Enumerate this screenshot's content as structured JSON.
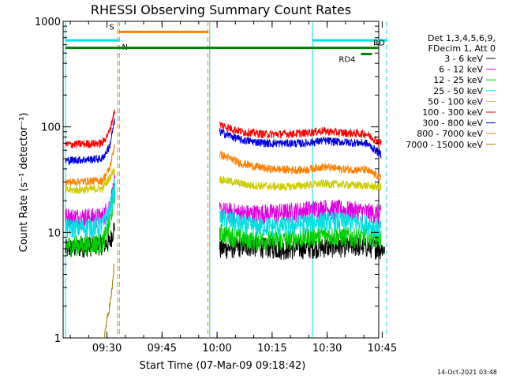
{
  "chart_data": {
    "type": "line",
    "title": "RHESSI Observing Summary Count Rates",
    "xlabel": "Start Time (07-Mar-09 09:18:42)",
    "ylabel": "Count Rate (s⁻¹ detector⁻¹)",
    "ylog": true,
    "ylim": [
      1,
      1000
    ],
    "xlim_minutes": [
      0,
      86
    ],
    "x_ticks": [
      {
        "label": "09:30",
        "m": 11.3
      },
      {
        "label": "09:45",
        "m": 26.3
      },
      {
        "label": "10:00",
        "m": 41.3
      },
      {
        "label": "10:15",
        "m": 56.3
      },
      {
        "label": "10:30",
        "m": 71.3
      },
      {
        "label": "10:45",
        "m": 86.3
      }
    ],
    "y_ticks": [
      "1",
      "10",
      "100",
      "1000"
    ],
    "legend_header": [
      "Det 1,3,4,5,6,9,",
      "FDecim 1, Att 0"
    ],
    "series": [
      {
        "name": "3 - 6 keV",
        "color": "#000000",
        "pre": [
          [
            0,
            7
          ],
          [
            12,
            8
          ],
          [
            13.5,
            12
          ]
        ],
        "post": [
          [
            42,
            7
          ],
          [
            50,
            7.5
          ],
          [
            60,
            7
          ],
          [
            70,
            7.3
          ],
          [
            80,
            7.5
          ],
          [
            87,
            7
          ]
        ]
      },
      {
        "name": "6 - 12 keV",
        "color": "#e000e0",
        "pre": [
          [
            0,
            14
          ],
          [
            10,
            14
          ],
          [
            12,
            18
          ],
          [
            13.5,
            30
          ]
        ],
        "post": [
          [
            42,
            16
          ],
          [
            50,
            15
          ],
          [
            60,
            15.5
          ],
          [
            70,
            17
          ],
          [
            80,
            16
          ],
          [
            86,
            15
          ]
        ]
      },
      {
        "name": "12 - 25 keV",
        "color": "#00cc00",
        "pre": [
          [
            0,
            7.5
          ],
          [
            10,
            8
          ],
          [
            12,
            12
          ],
          [
            13.5,
            25
          ]
        ],
        "post": [
          [
            42,
            10
          ],
          [
            50,
            8.5
          ],
          [
            60,
            8.5
          ],
          [
            70,
            9.5
          ],
          [
            80,
            9
          ],
          [
            86,
            9
          ]
        ]
      },
      {
        "name": "25 - 50 keV",
        "color": "#00e0e0",
        "pre": [
          [
            0,
            11
          ],
          [
            10,
            11.5
          ],
          [
            12,
            16
          ],
          [
            13.5,
            28
          ]
        ],
        "post": [
          [
            42,
            14
          ],
          [
            50,
            11.5
          ],
          [
            60,
            11.5
          ],
          [
            70,
            13
          ],
          [
            80,
            12.5
          ],
          [
            86,
            11
          ]
        ]
      },
      {
        "name": "50 - 100 keV",
        "color": "#cccc00",
        "pre": [
          [
            0,
            25
          ],
          [
            10,
            26
          ],
          [
            12,
            33
          ],
          [
            13.5,
            40
          ]
        ],
        "post": [
          [
            42,
            32
          ],
          [
            50,
            28
          ],
          [
            60,
            27
          ],
          [
            70,
            29
          ],
          [
            80,
            28
          ],
          [
            86,
            27
          ]
        ]
      },
      {
        "name": "100 - 300 keV",
        "color": "#ff0000",
        "pre": [
          [
            0,
            68
          ],
          [
            10,
            70
          ],
          [
            12,
            90
          ],
          [
            13.5,
            150
          ]
        ],
        "post": [
          [
            42,
            105
          ],
          [
            48,
            90
          ],
          [
            55,
            85
          ],
          [
            65,
            87
          ],
          [
            70,
            92
          ],
          [
            75,
            88
          ],
          [
            82,
            86
          ],
          [
            86,
            70
          ]
        ]
      },
      {
        "name": "300 - 800 keV",
        "color": "#0000e0",
        "pre": [
          [
            0,
            48
          ],
          [
            10,
            50
          ],
          [
            12,
            65
          ],
          [
            13.5,
            120
          ]
        ],
        "post": [
          [
            42,
            90
          ],
          [
            48,
            75
          ],
          [
            55,
            70
          ],
          [
            65,
            70
          ],
          [
            70,
            74
          ],
          [
            75,
            72
          ],
          [
            82,
            70
          ],
          [
            86,
            55
          ]
        ]
      },
      {
        "name": "800 - 7000 keV",
        "color": "#ff8000",
        "pre": [
          [
            0,
            30
          ],
          [
            10,
            31
          ],
          [
            12,
            40
          ],
          [
            13.5,
            70
          ]
        ],
        "post": [
          [
            42,
            55
          ],
          [
            48,
            45
          ],
          [
            55,
            40
          ],
          [
            65,
            39
          ],
          [
            70,
            42
          ],
          [
            75,
            40
          ],
          [
            82,
            39
          ],
          [
            86,
            33
          ]
        ]
      },
      {
        "name": "7000 - 15000 keV",
        "color": "#a07800",
        "pre": [
          [
            10.5,
            1
          ],
          [
            12.5,
            2.5
          ],
          [
            13.3,
            5
          ]
        ],
        "post": []
      }
    ],
    "flag_bars": [
      {
        "label": "S",
        "color": "#ff8000",
        "x0": 14.5,
        "x1": 39.0,
        "level": 795
      },
      {
        "label": "N",
        "color": "#00e0e0",
        "x0": 0,
        "x1": 14.5,
        "level": 660
      },
      {
        "label": "",
        "color": "#00e0e0",
        "x0": 67.3,
        "x1": 87.5,
        "level": 660
      },
      {
        "label": "",
        "color": "#008000",
        "x0": 0,
        "x1": 83.0,
        "level": 560
      },
      {
        "label": "RD",
        "color": "#008000",
        "x0": 83.0,
        "x1": 85.5,
        "level": 560
      },
      {
        "label": "RD4",
        "color": "#008000",
        "x0": 80.5,
        "x1": 83.5,
        "level": 490
      }
    ],
    "vertical_markers": [
      {
        "m": 0.0,
        "color": "#00e0e0",
        "style": "solid"
      },
      {
        "m": 14.2,
        "color": "#ff8000",
        "style": "dashed"
      },
      {
        "m": 14.7,
        "color": "#00e0e0",
        "style": "dashed"
      },
      {
        "m": 38.8,
        "color": "#ff8000",
        "style": "dashed"
      },
      {
        "m": 39.3,
        "color": "#00e0e0",
        "style": "solid"
      },
      {
        "m": 67.3,
        "color": "#00e0e0",
        "style": "solid"
      },
      {
        "m": 87.5,
        "color": "#00e0e0",
        "style": "dashed"
      }
    ]
  },
  "footer": {
    "timestamp": "14-Oct-2021 03:48"
  }
}
